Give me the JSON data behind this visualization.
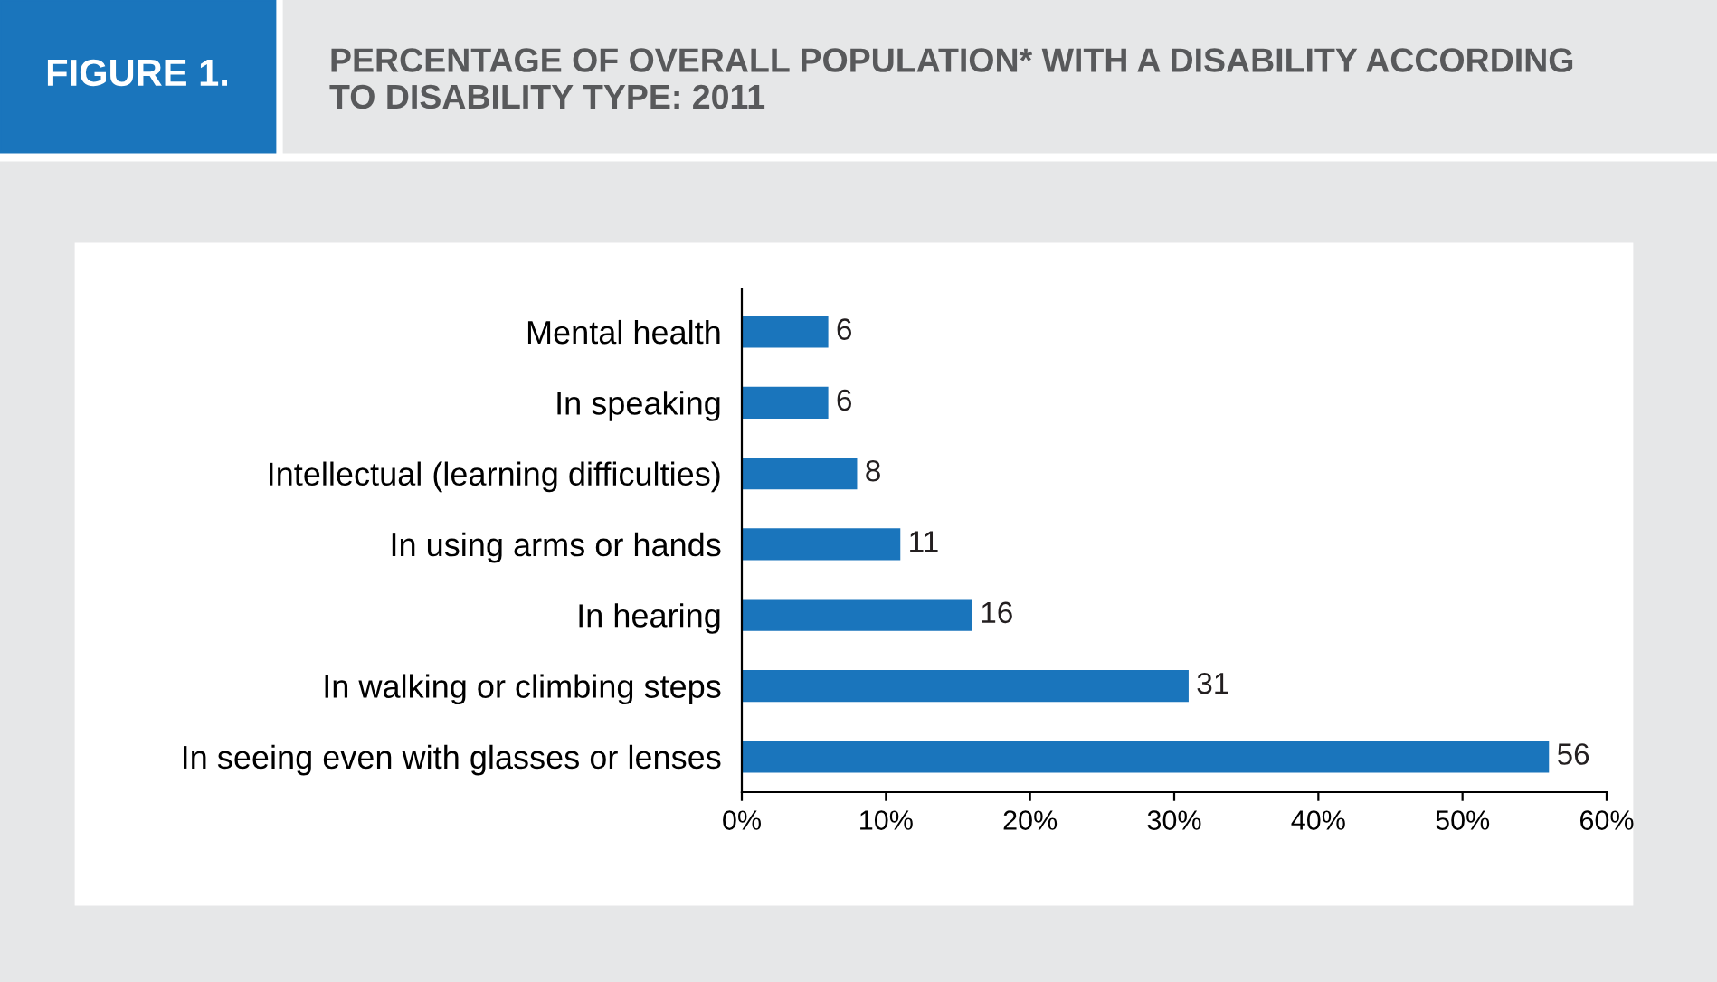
{
  "chart_data": {
    "type": "bar",
    "orientation": "horizontal",
    "title": "PERCENTAGE OF OVERALL POPULATION* WITH A DISABILITY ACCORDING\nTO DISABILITY TYPE: 2011",
    "annotations": [
      "FIGURE 1."
    ],
    "categories": [
      "Mental health",
      "In speaking",
      "Intellectual (learning difficulties)",
      "In using arms or hands",
      "In hearing",
      "In walking or climbing steps",
      "In seeing even with glasses or lenses"
    ],
    "values": [
      6,
      6,
      8,
      11,
      16,
      31,
      56
    ],
    "color": "#1a75bc",
    "data_labels": true,
    "grid": false,
    "legend": false,
    "xlim": [
      0,
      60
    ],
    "xticks": [
      {
        "value": 0,
        "label": "0%"
      },
      {
        "value": 10,
        "label": "10%"
      },
      {
        "value": 20,
        "label": "20%"
      },
      {
        "value": 30,
        "label": "30%"
      },
      {
        "value": 40,
        "label": "40%"
      },
      {
        "value": 50,
        "label": "50%"
      },
      {
        "value": 60,
        "label": "60%"
      }
    ]
  }
}
